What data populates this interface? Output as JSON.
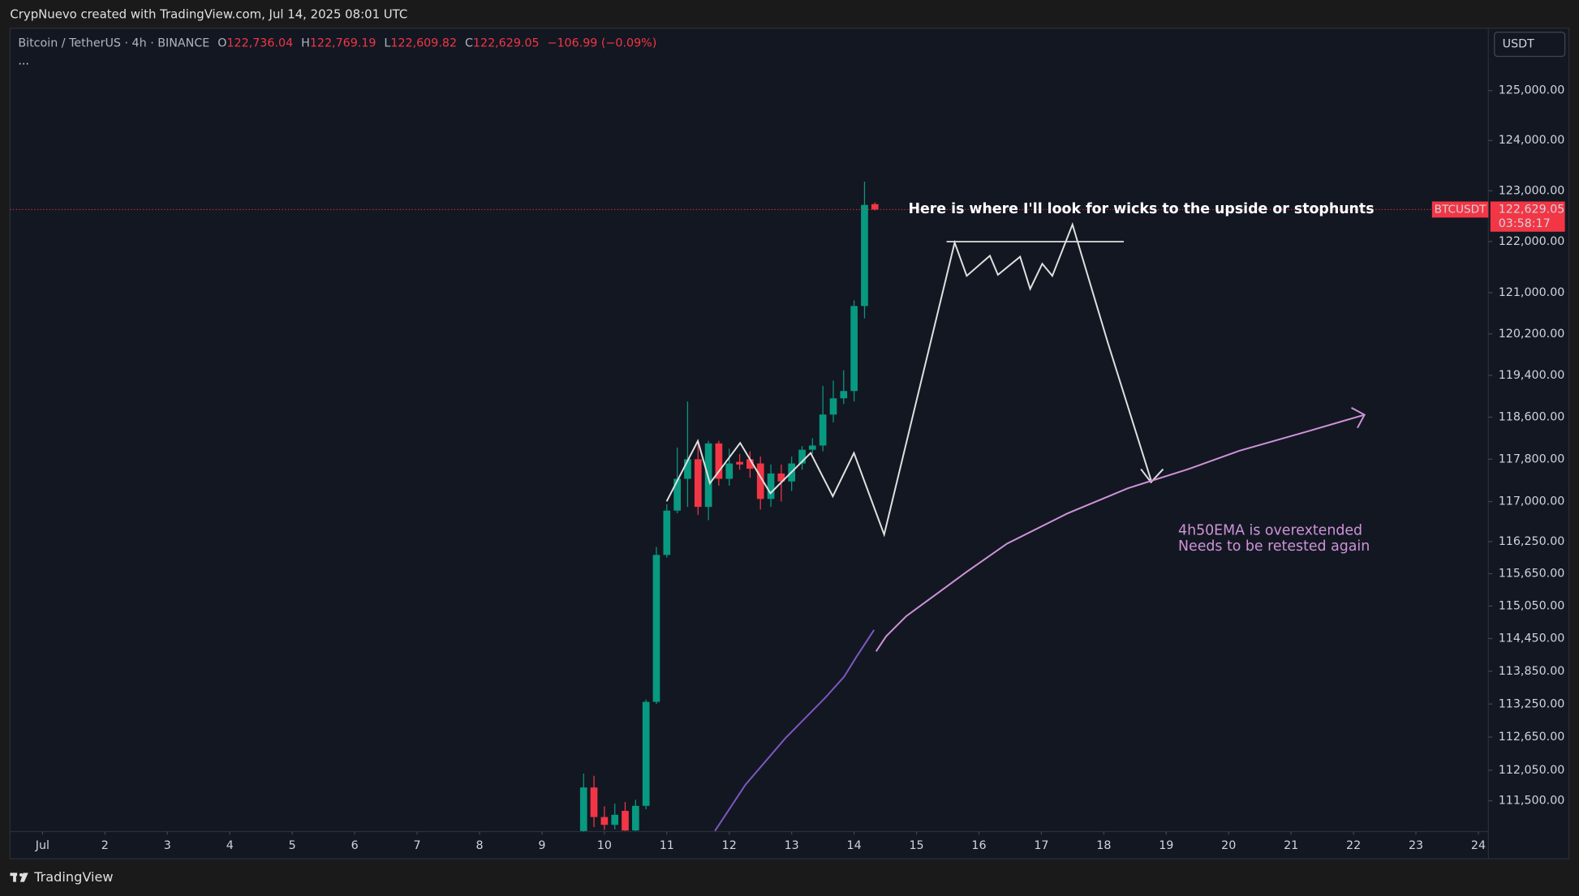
{
  "header": {
    "credit": "CrypNuevo created with TradingView.com, Jul 14, 2025 08:01 UTC"
  },
  "legend": {
    "symbol": "Bitcoin / TetherUS · 4h · BINANCE",
    "ohlc": [
      {
        "key": "O",
        "value": "122,736.04"
      },
      {
        "key": "H",
        "value": "122,769.19"
      },
      {
        "key": "L",
        "value": "122,609.82"
      },
      {
        "key": "C",
        "value": "122,629.05"
      }
    ],
    "change": "−106.99 (−0.09%)",
    "more": "..."
  },
  "currency": "USDT",
  "price_tag": {
    "symbol": "BTCUSDT",
    "price": "122,629.05",
    "countdown": "03:58:17"
  },
  "footer": {
    "brand": "TradingView"
  },
  "chart_data": {
    "type": "candlestick",
    "log": true,
    "up_color": "#089981",
    "down_color": "#f23645",
    "x": [
      9.667,
      9.833,
      10.0,
      10.167,
      10.333,
      10.5,
      10.667,
      10.833,
      11.0,
      11.167,
      11.333,
      11.5,
      11.667,
      11.833,
      12.0,
      12.167,
      12.333,
      12.5,
      12.667,
      12.833,
      13.0,
      13.167,
      13.333,
      13.5,
      13.667,
      13.833,
      14.0,
      14.167,
      14.333
    ],
    "open": [
      110960,
      111740,
      111210,
      111070,
      111320,
      110970,
      111410,
      113290,
      116000,
      116830,
      117430,
      117800,
      116900,
      118100,
      117430,
      117750,
      117800,
      117720,
      117050,
      117530,
      117380,
      117720,
      117980,
      118060,
      118650,
      118960,
      119100,
      120740,
      122736.04
    ],
    "high": [
      111990,
      111950,
      111400,
      111450,
      111480,
      111520,
      113330,
      116150,
      116950,
      118020,
      118900,
      118150,
      118150,
      118150,
      118000,
      117900,
      117950,
      117850,
      117700,
      117700,
      117850,
      118050,
      118200,
      119200,
      119300,
      119500,
      120850,
      123180,
      122769.19
    ],
    "low": [
      110950,
      111030,
      110980,
      110990,
      110960,
      110960,
      111350,
      113250,
      115950,
      116780,
      116900,
      116750,
      116650,
      117300,
      117300,
      117600,
      117450,
      116850,
      116900,
      117000,
      117200,
      117600,
      117900,
      117950,
      118500,
      118850,
      118900,
      120500,
      122609.82
    ],
    "close": [
      111740,
      111210,
      111070,
      111250,
      110970,
      111410,
      113290,
      116000,
      116830,
      117430,
      117800,
      116900,
      118100,
      117430,
      117720,
      117700,
      117620,
      117050,
      117530,
      117380,
      117720,
      117980,
      118060,
      118650,
      118960,
      119100,
      120740,
      122720,
      122629.05
    ],
    "ema": {
      "color": "#7e57c2",
      "x": [
        11.77,
        12.26,
        12.9,
        13.55,
        13.84,
        14.03,
        14.32
      ],
      "values": [
        110960,
        111790,
        112630,
        113380,
        113750,
        114100,
        114610
      ]
    },
    "xlim": [
      0.48,
      24.16
    ],
    "xticks": [
      {
        "value": 1,
        "label": "Jul"
      },
      2,
      3,
      4,
      5,
      6,
      7,
      8,
      9,
      10,
      11,
      12,
      13,
      14,
      15,
      16,
      17,
      18,
      19,
      20,
      21,
      22,
      23,
      24
    ],
    "ylim": [
      110950,
      126260
    ],
    "yticks": [
      {
        "value": 125000,
        "label": "125,000.00"
      },
      {
        "value": 124000,
        "label": "124,000.00"
      },
      {
        "value": 123000,
        "label": "123,000.00"
      },
      {
        "value": 122000,
        "label": "122,000.00"
      },
      {
        "value": 121000,
        "label": "121,000.00"
      },
      {
        "value": 120200,
        "label": "120,200.00"
      },
      {
        "value": 119400,
        "label": "119,400.00"
      },
      {
        "value": 118600,
        "label": "118,600.00"
      },
      {
        "value": 117800,
        "label": "117,800.00"
      },
      {
        "value": 117000,
        "label": "117,000.00"
      },
      {
        "value": 116250,
        "label": "116,250.00"
      },
      {
        "value": 115650,
        "label": "115,650.00"
      },
      {
        "value": 115050,
        "label": "115,050.00"
      },
      {
        "value": 114450,
        "label": "114,450.00"
      },
      {
        "value": 113850,
        "label": "113,850.00"
      },
      {
        "value": 113250,
        "label": "113,250.00"
      },
      {
        "value": 112650,
        "label": "112,650.00"
      },
      {
        "value": 112050,
        "label": "112,050.00"
      },
      {
        "value": 111500,
        "label": "111,500.00"
      }
    ],
    "annotations": {
      "note": "Here is where I'll look for wicks to the upside or stophunts",
      "ema_note": [
        "4h50EMA is overextended",
        "Needs to be retested again"
      ]
    }
  }
}
